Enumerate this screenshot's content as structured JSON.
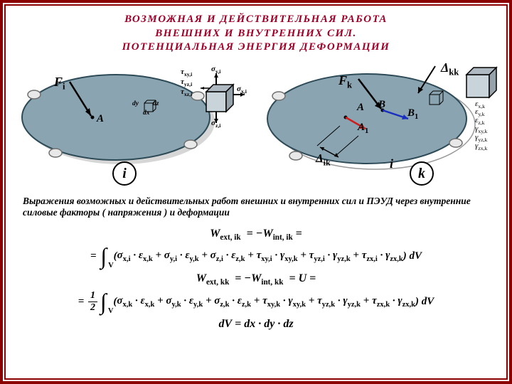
{
  "colors": {
    "frame": "#8b0000",
    "title": "#a00028",
    "ellipse_fill": "#8aa4b1",
    "ellipse_stroke": "#2d4a57",
    "cube_fill": "#c9d4da",
    "arrow_blue": "#1a2fbf",
    "arrow_red": "#d01c1c",
    "shadow": "#d6d6d6",
    "support": "#e8e8e8"
  },
  "title": {
    "line1": "ВОЗМОЖНАЯ  И  ДЕЙТВИТЕЛЬНАЯ  РАБОТА",
    "line2": "ВНЕШНИХ  И  ВНУТРЕННИХ  СИЛ.",
    "line3": "ПОТЕНЦИАЛЬНАЯ  ЭНЕРГИЯ  ДЕФОРМАЦИИ",
    "true_line1": "ВОЗМОЖНАЯ  И  ДЕЙСТВИТЕЛЬНАЯ  РАБОТА"
  },
  "subtext": "Выражения возможных и действительных  работ внешних и внутренних сил и ПЭУД через внутренние силовые факторы ( напряжения ) и деформации",
  "left_diagram": {
    "label_F": "F",
    "sub_F": "i",
    "label_A": "A",
    "badge": "i",
    "stress_sigma_x": "σ",
    "stress_sigma_x_sub": "x,i",
    "stress_sigma_y": "σ",
    "stress_sigma_y_sub": "y,i",
    "stress_sigma_z": "σ",
    "stress_sigma_z_sub": "z,i",
    "stress_tau_xy": "τ",
    "stress_tau_xy_sub": "xy,i",
    "stress_tau_yz": "τ",
    "stress_tau_yz_sub": "yz,i",
    "stress_tau_xz": "τ",
    "stress_tau_xz_sub": "xz,i",
    "dx": "dx",
    "dy": "dy",
    "dz": "dz"
  },
  "right_diagram": {
    "label_Fk": "F",
    "sub_Fk": "k",
    "label_A": "A",
    "label_B": "B",
    "label_A1": "A",
    "sub_A1": "1",
    "label_B1": "B",
    "sub_B1": "1",
    "delta_ik": "Δ",
    "delta_ik_sub": "ik",
    "delta_kk": "Δ",
    "delta_kk_sub": "kk",
    "badge_i": "i",
    "badge_k": "k",
    "strains": [
      "ε",
      "ε",
      "ε",
      "γ",
      "γ",
      "γ"
    ],
    "strain_subs": [
      "x,k",
      "y,k",
      "z,k",
      "xy,k",
      "yz,k",
      "zx,k"
    ]
  },
  "formulas": {
    "head1_a": "W",
    "head1_a_sub": "ext, ik",
    "head1_b": "W",
    "head1_b_sub": "int, ik",
    "int_V": "V",
    "terms_ik": [
      {
        "s": "σ",
        "ss": "x,i",
        "e": "ε",
        "es": "x,k"
      },
      {
        "s": "σ",
        "ss": "y,i",
        "e": "ε",
        "es": "y,k"
      },
      {
        "s": "σ",
        "ss": "z,i",
        "e": "ε",
        "es": "z,k"
      },
      {
        "s": "τ",
        "ss": "xy,i",
        "e": "γ",
        "es": "xy,k"
      },
      {
        "s": "τ",
        "ss": "yz,i",
        "e": "γ",
        "es": "yz,k"
      },
      {
        "s": "τ",
        "ss": "zx,i",
        "e": "γ",
        "es": "zx,k"
      }
    ],
    "head2_a": "W",
    "head2_a_sub": "ext, kk",
    "head2_b": "W",
    "head2_b_sub": "int, kk",
    "head2_U": "U",
    "terms_kk": [
      {
        "s": "σ",
        "ss": "x,k",
        "e": "ε",
        "es": "x,k"
      },
      {
        "s": "σ",
        "ss": "y,k",
        "e": "ε",
        "es": "y,k"
      },
      {
        "s": "σ",
        "ss": "z,k",
        "e": "ε",
        "es": "z,k"
      },
      {
        "s": "τ",
        "ss": "xy,k",
        "e": "γ",
        "es": "xy,k"
      },
      {
        "s": "τ",
        "ss": "yz,k",
        "e": "γ",
        "es": "yz,k"
      },
      {
        "s": "τ",
        "ss": "zx,k",
        "e": "γ",
        "es": "zx,k"
      }
    ],
    "dV_lhs": "dV",
    "dV_rhs": "= dx · dy · dz"
  }
}
